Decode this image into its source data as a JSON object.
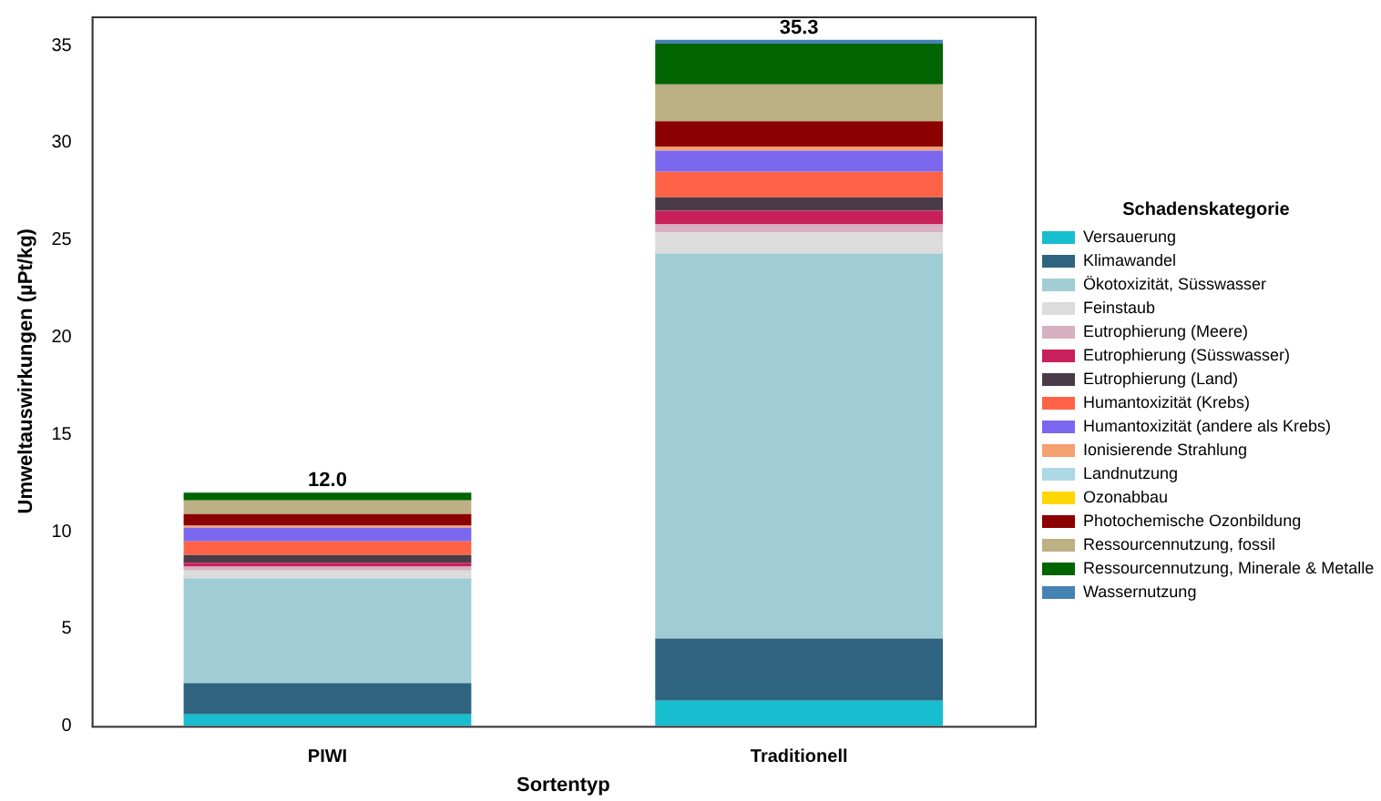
{
  "chart_data": {
    "type": "bar",
    "stacked": true,
    "categories": [
      "PIWI",
      "Traditionell"
    ],
    "xlabel": "Sortentyp",
    "ylabel": "Umweltauswirkungen (µPt/kg)",
    "legend_title": "Schadenskategorie",
    "legend": "right",
    "grid": false,
    "ylim": [
      0,
      36.5
    ],
    "yticks": [
      0,
      5,
      10,
      15,
      20,
      25,
      30,
      35
    ],
    "series": [
      {
        "name": "Versauerung",
        "color": "#17becf",
        "values": [
          0.6,
          1.3
        ]
      },
      {
        "name": "Klimawandel",
        "color": "#2e6480",
        "values": [
          1.6,
          3.2
        ]
      },
      {
        "name": "Ökotoxizität, Süsswasser",
        "color": "#a0cdd5",
        "values": [
          5.4,
          19.8
        ]
      },
      {
        "name": "Feinstaub",
        "color": "#dcdcdc",
        "values": [
          0.4,
          1.1
        ]
      },
      {
        "name": "Eutrophierung (Meere)",
        "color": "#d8b0c0",
        "values": [
          0.2,
          0.4
        ]
      },
      {
        "name": "Eutrophierung (Süsswasser)",
        "color": "#c8205a",
        "values": [
          0.2,
          0.7
        ]
      },
      {
        "name": "Eutrophierung (Land)",
        "color": "#4a3b48",
        "values": [
          0.4,
          0.7
        ]
      },
      {
        "name": "Humantoxizität (Krebs)",
        "color": "#ff6347",
        "values": [
          0.7,
          1.3
        ]
      },
      {
        "name": "Humantoxizität (andere als Krebs)",
        "color": "#7b68ee",
        "values": [
          0.7,
          1.1
        ]
      },
      {
        "name": "Ionisierende Strahlung",
        "color": "#f4a070",
        "values": [
          0.1,
          0.2
        ]
      },
      {
        "name": "Landnutzung",
        "color": "#add8e6",
        "values": [
          0,
          null
        ]
      },
      {
        "name": "Ozonabbau",
        "color": "#ffd700",
        "values": [
          0,
          0
        ]
      },
      {
        "name": "Photochemische Ozonbildung",
        "color": "#8b0000",
        "values": [
          0.6,
          1.3
        ]
      },
      {
        "name": "Ressourcennutzung, fossil",
        "color": "#bdb083",
        "values": [
          0.7,
          1.9
        ]
      },
      {
        "name": "Ressourcennutzung, Minerale & Metalle",
        "color": "#006400",
        "values": [
          0.4,
          2.1
        ]
      },
      {
        "name": "Wassernutzung",
        "color": "#4682b4",
        "values": [
          0,
          0.2
        ]
      }
    ],
    "totals": [
      "12.0",
      "35.3"
    ]
  }
}
